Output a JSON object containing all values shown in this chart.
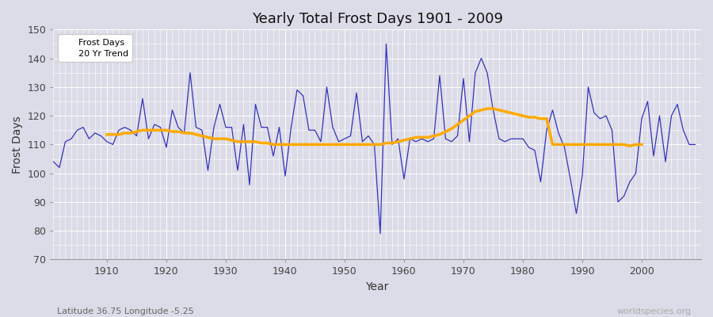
{
  "title": "Yearly Total Frost Days 1901 - 2009",
  "xlabel": "Year",
  "ylabel": "Frost Days",
  "ylim": [
    70,
    150
  ],
  "yticks": [
    70,
    80,
    90,
    100,
    110,
    120,
    130,
    140,
    150
  ],
  "bg_color": "#dcdce8",
  "plot_bg_color": "#dcdce8",
  "grid_color": "#ffffff",
  "frost_color": "#3333bb",
  "trend_color": "#ffaa00",
  "subtitle": "Latitude 36.75 Longitude -5.25",
  "watermark": "worldspecies.org",
  "years": [
    1901,
    1902,
    1903,
    1904,
    1905,
    1906,
    1907,
    1908,
    1909,
    1910,
    1911,
    1912,
    1913,
    1914,
    1915,
    1916,
    1917,
    1918,
    1919,
    1920,
    1921,
    1922,
    1923,
    1924,
    1925,
    1926,
    1927,
    1928,
    1929,
    1930,
    1931,
    1932,
    1933,
    1934,
    1935,
    1936,
    1937,
    1938,
    1939,
    1940,
    1941,
    1942,
    1943,
    1944,
    1945,
    1946,
    1947,
    1948,
    1949,
    1950,
    1951,
    1952,
    1953,
    1954,
    1955,
    1956,
    1957,
    1958,
    1959,
    1960,
    1961,
    1962,
    1963,
    1964,
    1965,
    1966,
    1967,
    1968,
    1969,
    1970,
    1971,
    1972,
    1973,
    1974,
    1975,
    1976,
    1977,
    1978,
    1979,
    1980,
    1981,
    1982,
    1983,
    1984,
    1985,
    1986,
    1987,
    1988,
    1989,
    1990,
    1991,
    1992,
    1993,
    1994,
    1995,
    1996,
    1997,
    1998,
    1999,
    2000,
    2001,
    2002,
    2003,
    2004,
    2005,
    2006,
    2007,
    2008,
    2009
  ],
  "frost_days": [
    104,
    102,
    111,
    112,
    115,
    116,
    112,
    114,
    113,
    111,
    110,
    115,
    116,
    115,
    113,
    126,
    112,
    117,
    116,
    109,
    122,
    116,
    114,
    135,
    116,
    115,
    101,
    116,
    124,
    116,
    116,
    101,
    117,
    96,
    124,
    116,
    116,
    106,
    116,
    99,
    116,
    129,
    127,
    115,
    115,
    111,
    130,
    116,
    111,
    112,
    113,
    128,
    111,
    113,
    110,
    79,
    145,
    110,
    112,
    98,
    112,
    111,
    112,
    111,
    112,
    134,
    112,
    111,
    113,
    133,
    111,
    135,
    140,
    135,
    122,
    112,
    111,
    112,
    112,
    112,
    109,
    108,
    97,
    115,
    122,
    114,
    109,
    98,
    86,
    99,
    130,
    121,
    119,
    120,
    115,
    90,
    92,
    97,
    100,
    119,
    125,
    106,
    120,
    104,
    120,
    124,
    115,
    110,
    110
  ],
  "trend_years": [
    1910,
    1911,
    1912,
    1913,
    1914,
    1915,
    1916,
    1917,
    1918,
    1919,
    1920,
    1921,
    1922,
    1923,
    1924,
    1925,
    1926,
    1927,
    1928,
    1929,
    1930,
    1931,
    1932,
    1933,
    1934,
    1935,
    1936,
    1937,
    1938,
    1939,
    1940,
    1941,
    1942,
    1943,
    1944,
    1945,
    1946,
    1947,
    1948,
    1949,
    1950,
    1951,
    1952,
    1953,
    1954,
    1955,
    1956,
    1957,
    1958,
    1959,
    1960,
    1961,
    1962,
    1963,
    1964,
    1965,
    1966,
    1967,
    1968,
    1969,
    1970,
    1971,
    1972,
    1973,
    1974,
    1975,
    1976,
    1977,
    1978,
    1979,
    1980,
    1981,
    1982,
    1983,
    1984,
    1985,
    1986,
    1987,
    1988,
    1989,
    1990,
    1991,
    1992,
    1993,
    1994,
    1995,
    1996,
    1997,
    1998,
    1999,
    2000
  ],
  "trend_vals": [
    113.5,
    113.5,
    113.5,
    114.0,
    114.0,
    114.5,
    115.0,
    115.0,
    115.0,
    115.0,
    115.0,
    114.5,
    114.5,
    114.0,
    114.0,
    113.5,
    113.0,
    112.5,
    112.0,
    112.0,
    112.0,
    111.5,
    111.0,
    111.0,
    111.0,
    111.0,
    110.5,
    110.5,
    110.0,
    110.0,
    110.0,
    110.0,
    110.0,
    110.0,
    110.0,
    110.0,
    110.0,
    110.0,
    110.0,
    110.0,
    110.0,
    110.0,
    110.0,
    110.0,
    110.0,
    110.0,
    110.0,
    110.5,
    110.5,
    111.0,
    111.5,
    112.0,
    112.5,
    112.5,
    112.5,
    113.0,
    113.5,
    114.5,
    115.5,
    117.0,
    118.5,
    120.0,
    121.5,
    122.0,
    122.5,
    122.5,
    122.0,
    121.5,
    121.0,
    120.5,
    120.0,
    119.5,
    119.5,
    119.0,
    119.0,
    110.0,
    110.0,
    110.0,
    110.0,
    110.0,
    110.0,
    110.0,
    110.0,
    110.0,
    110.0,
    110.0,
    110.0,
    110.0,
    109.5,
    110.0,
    110.0
  ]
}
